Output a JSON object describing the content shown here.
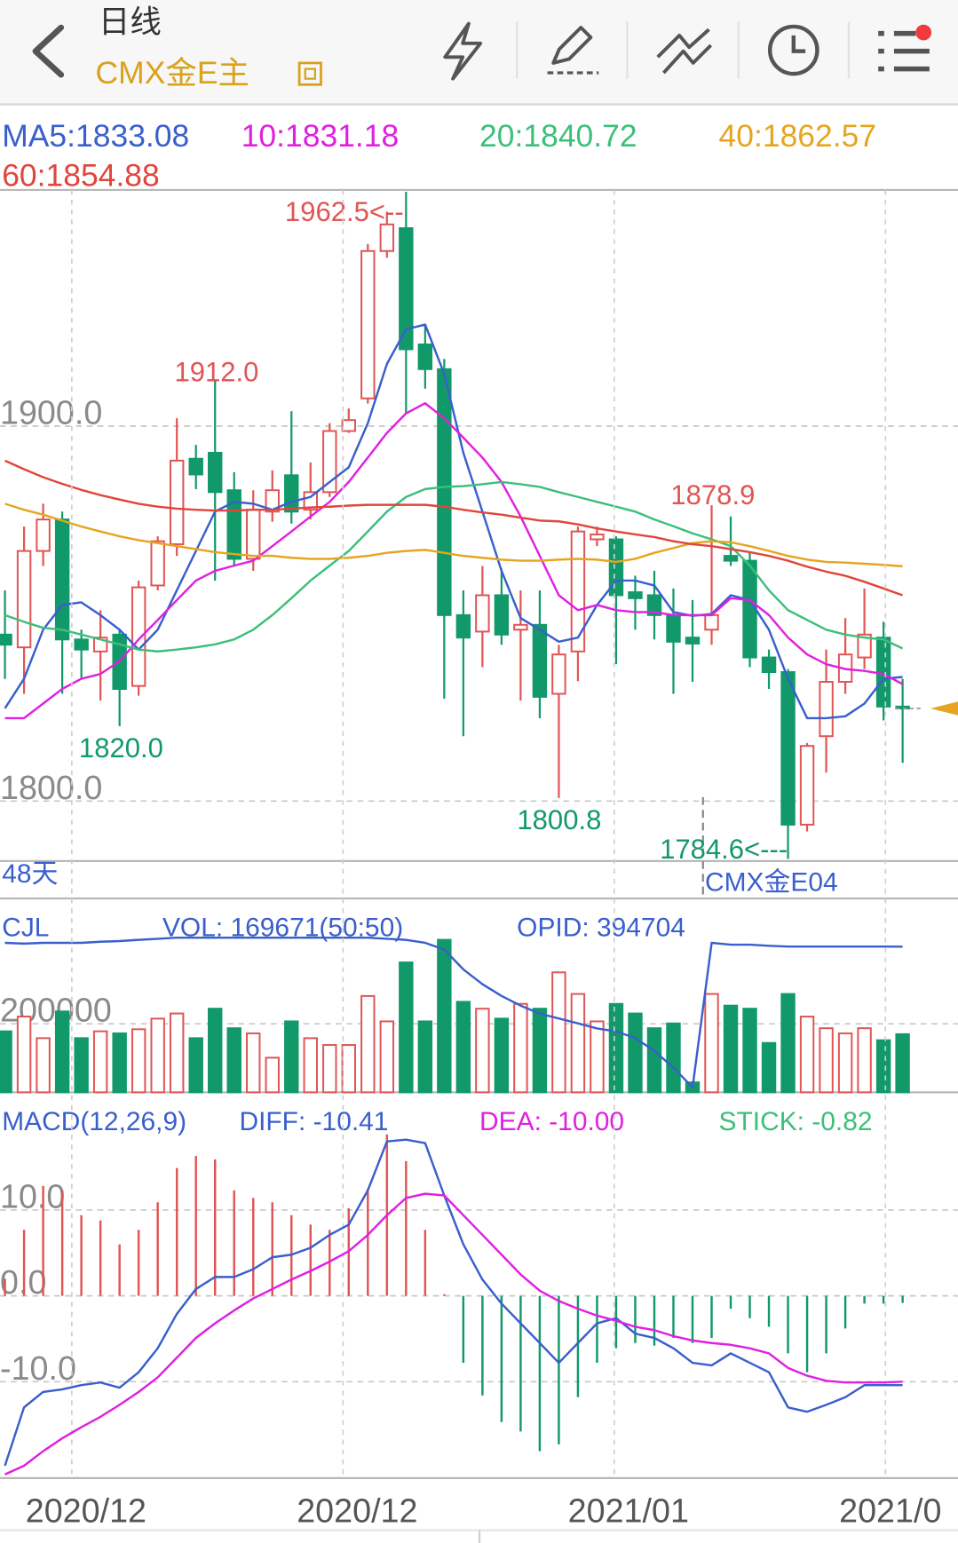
{
  "header": {
    "period": "日线",
    "symbol": "CMX金E主"
  },
  "chart_data": [
    {
      "type": "candlestick",
      "xlim": [
        -0.26,
        49.9
      ],
      "ylim": [
        1784,
        1963
      ],
      "yticks": [
        {
          "value": 1900,
          "label": "1900.0"
        },
        {
          "value": 1800,
          "label": "1800.0"
        }
      ],
      "grid": true,
      "up_color": "#e05555",
      "down_color": "#12996a",
      "open": [
        1844.4,
        1841.0,
        1866.7,
        1875.1,
        1843.1,
        1839.9,
        1844.4,
        1830.7,
        1857.5,
        1868.5,
        1891.3,
        1892.9,
        1882.9,
        1864.6,
        1877.2,
        1886.9,
        1877.7,
        1882.4,
        1898.7,
        1907.4,
        1946.7,
        1952.8,
        1921.8,
        1915.2,
        1849.6,
        1845.2,
        1854.9,
        1845.7,
        1847.0,
        1828.6,
        1839.9,
        1869.8,
        1869.8,
        1855.7,
        1854.9,
        1849.6,
        1843.6,
        1845.7,
        1865.4,
        1864.1,
        1838.3,
        1834.4,
        1793.7,
        1817.3,
        1831.8,
        1838.3,
        1843.6,
        1825.2
      ],
      "close": [
        1841.7,
        1866.7,
        1875.1,
        1843.1,
        1840.4,
        1843.6,
        1829.9,
        1857.0,
        1869.3,
        1890.8,
        1887.1,
        1882.4,
        1864.6,
        1877.7,
        1882.9,
        1877.2,
        1882.4,
        1898.7,
        1901.6,
        1946.7,
        1953.8,
        1920.5,
        1915.2,
        1849.6,
        1843.6,
        1854.9,
        1844.4,
        1847.0,
        1827.8,
        1839.1,
        1871.9,
        1871.1,
        1854.9,
        1854.1,
        1849.6,
        1842.5,
        1842.0,
        1849.6,
        1864.1,
        1838.3,
        1834.4,
        1793.7,
        1814.7,
        1831.8,
        1839.1,
        1844.4,
        1825.2,
        1824.7
      ],
      "high": [
        1856.2,
        1873.2,
        1879.3,
        1877.2,
        1845.7,
        1850.9,
        1845.7,
        1858.8,
        1870.6,
        1902.1,
        1895.0,
        1912.0,
        1887.7,
        1882.9,
        1888.2,
        1904.0,
        1890.3,
        1900.8,
        1904.7,
        1948.6,
        1957.2,
        1962.5,
        1927.0,
        1917.9,
        1856.2,
        1862.7,
        1862.0,
        1856.2,
        1856.2,
        1841.7,
        1873.2,
        1873.2,
        1870.6,
        1860.1,
        1861.4,
        1856.7,
        1853.6,
        1878.9,
        1875.9,
        1866.2,
        1840.4,
        1835.2,
        1815.5,
        1840.4,
        1848.8,
        1856.7,
        1847.8,
        1832.6
      ],
      "low": [
        1832.6,
        1828.6,
        1862.7,
        1828.6,
        1832.6,
        1826.8,
        1820.0,
        1828.1,
        1856.2,
        1865.4,
        1883.2,
        1858.8,
        1862.7,
        1861.4,
        1874.5,
        1874.0,
        1875.1,
        1881.1,
        1898.2,
        1906.0,
        1944.9,
        1903.4,
        1910.0,
        1827.3,
        1817.3,
        1835.7,
        1841.7,
        1826.8,
        1822.1,
        1800.8,
        1832.0,
        1868.0,
        1836.5,
        1845.7,
        1843.1,
        1828.6,
        1831.8,
        1841.7,
        1862.7,
        1835.7,
        1829.9,
        1784.6,
        1791.9,
        1807.6,
        1828.6,
        1835.2,
        1821.5,
        1810.2
      ],
      "series": [
        {
          "name": "MA5:1833.08",
          "color": "#3a5fcd",
          "values": [
            1824.7,
            1832.6,
            1845.7,
            1852.3,
            1853.0,
            1849.6,
            1845.7,
            1840.4,
            1845.7,
            1856.2,
            1866.7,
            1877.2,
            1879.8,
            1879.3,
            1877.7,
            1879.8,
            1881.1,
            1885.1,
            1889.0,
            1900.8,
            1916.6,
            1925.8,
            1927.1,
            1913.9,
            1892.9,
            1877.2,
            1861.4,
            1848.8,
            1845.7,
            1842.5,
            1843.6,
            1852.3,
            1858.8,
            1858.8,
            1857.5,
            1850.4,
            1849.4,
            1849.9,
            1854.9,
            1853.6,
            1845.7,
            1832.6,
            1822.1,
            1822.1,
            1822.6,
            1826.0,
            1832.6,
            1833.1
          ]
        },
        {
          "name": "10:1831.18",
          "color": "#e020e0",
          "values": [
            1822.1,
            1822.1,
            1826.0,
            1829.9,
            1832.6,
            1833.9,
            1837.3,
            1843.1,
            1848.3,
            1853.6,
            1858.8,
            1861.4,
            1862.8,
            1864.1,
            1868.0,
            1871.9,
            1875.9,
            1879.8,
            1885.1,
            1891.6,
            1898.2,
            1903.4,
            1906.1,
            1902.1,
            1896.9,
            1891.6,
            1885.1,
            1875.9,
            1865.4,
            1854.9,
            1850.9,
            1852.3,
            1850.9,
            1850.4,
            1850.4,
            1849.6,
            1849.6,
            1849.6,
            1854.1,
            1853.6,
            1849.6,
            1843.6,
            1839.1,
            1836.5,
            1835.2,
            1834.7,
            1833.9,
            1831.2
          ]
        },
        {
          "name": "20:1840.72",
          "color": "#3cbf7a",
          "values": [
            1849.6,
            1847.8,
            1846.2,
            1845.7,
            1844.4,
            1843.1,
            1841.8,
            1840.4,
            1839.9,
            1840.4,
            1841.0,
            1841.8,
            1843.1,
            1845.7,
            1849.6,
            1854.1,
            1858.8,
            1862.8,
            1866.7,
            1871.9,
            1877.2,
            1881.1,
            1883.2,
            1883.8,
            1884.0,
            1884.5,
            1885.1,
            1884.5,
            1883.8,
            1882.4,
            1881.1,
            1879.8,
            1878.5,
            1877.2,
            1875.1,
            1873.3,
            1871.4,
            1869.8,
            1868.0,
            1862.8,
            1856.2,
            1850.9,
            1848.3,
            1845.7,
            1844.4,
            1843.6,
            1843.1,
            1840.7
          ]
        },
        {
          "name": "40:1862.57",
          "color": "#e6a520",
          "values": [
            1879.3,
            1877.7,
            1876.4,
            1874.8,
            1873.2,
            1871.9,
            1870.6,
            1869.6,
            1868.8,
            1868.0,
            1867.2,
            1866.4,
            1865.9,
            1865.4,
            1865.4,
            1864.9,
            1864.6,
            1864.6,
            1864.9,
            1865.4,
            1866.2,
            1866.7,
            1867.0,
            1866.2,
            1865.4,
            1864.9,
            1864.4,
            1864.1,
            1864.1,
            1864.4,
            1864.6,
            1864.4,
            1863.8,
            1864.6,
            1866.2,
            1867.5,
            1868.8,
            1869.3,
            1869.0,
            1868.0,
            1866.7,
            1865.4,
            1864.4,
            1863.8,
            1863.6,
            1863.3,
            1863.0,
            1862.6
          ]
        },
        {
          "name": "60:1854.88",
          "color": "#e0463c",
          "values": [
            1890.8,
            1888.5,
            1886.4,
            1884.6,
            1883.0,
            1881.6,
            1880.4,
            1879.3,
            1878.5,
            1878.0,
            1877.7,
            1877.5,
            1877.5,
            1877.7,
            1877.7,
            1878.0,
            1878.3,
            1878.5,
            1878.8,
            1879.0,
            1879.0,
            1879.0,
            1879.0,
            1878.5,
            1877.7,
            1877.0,
            1876.4,
            1875.6,
            1874.8,
            1874.6,
            1873.8,
            1872.7,
            1871.9,
            1871.1,
            1870.4,
            1869.3,
            1868.5,
            1868.0,
            1867.2,
            1866.4,
            1865.4,
            1864.1,
            1862.5,
            1861.2,
            1860.1,
            1858.5,
            1856.7,
            1854.9
          ]
        }
      ],
      "annotations": [
        "1962.5<--",
        "1912.0",
        "1878.9",
        "1820.0",
        "1800.8",
        "1784.6<---"
      ],
      "period_label": "48天",
      "contract_label": "CMX金E04"
    },
    {
      "type": "volume",
      "title": "CJL",
      "xlim": [
        -0.26,
        49.9
      ],
      "ylim": [
        0,
        560000
      ],
      "yticks": [
        200000
      ],
      "y2lim": [
        0,
        520000
      ],
      "series": [
        {
          "name": "VOL: 169671(50:50)",
          "color": "#3a5fcd",
          "values": [
            178000,
            221000,
            158000,
            236000,
            158000,
            178000,
            172000,
            184000,
            215000,
            230000,
            158000,
            244000,
            187000,
            172000,
            101000,
            207000,
            158000,
            138000,
            138000,
            281000,
            207000,
            379000,
            207000,
            445000,
            264000,
            244000,
            215000,
            258000,
            244000,
            350000,
            287000,
            207000,
            258000,
            230000,
            187000,
            201000,
            29000,
            287000,
            253000,
            244000,
            144000,
            287000,
            221000,
            187000,
            172000,
            187000,
            152000,
            169671
          ]
        },
        {
          "name": "OPID: 394704",
          "color": "#3a5fcd",
          "axis": "y2",
          "values": [
            405000,
            403000,
            405000,
            405000,
            405000,
            408000,
            410000,
            413000,
            416000,
            419000,
            419000,
            419000,
            419000,
            419000,
            419000,
            419000,
            419000,
            419000,
            419000,
            419000,
            416000,
            413000,
            405000,
            387000,
            333000,
            293000,
            261000,
            235000,
            213000,
            200000,
            187000,
            173000,
            165000,
            147000,
            112000,
            67000,
            13000,
            405000,
            400000,
            400000,
            397000,
            395000,
            395000,
            395000,
            395000,
            395000,
            395000,
            394704
          ]
        }
      ]
    },
    {
      "type": "macd",
      "title": "MACD(12,26,9)",
      "xlim": [
        -0.26,
        49.9
      ],
      "ylim": [
        -21,
        22
      ],
      "yticks": [
        {
          "value": 10,
          "label": "10.0"
        },
        {
          "value": 0,
          "label": "0.0"
        },
        {
          "value": -10,
          "label": "-10.0"
        }
      ],
      "xticks": [
        {
          "value": 3.5,
          "label": "2020/12"
        },
        {
          "value": 17.7,
          "label": "2020/12"
        },
        {
          "value": 31.9,
          "label": "2021/01"
        },
        {
          "value": 46.1,
          "label": "2021/0"
        }
      ],
      "up_color": "#e05555",
      "down_color": "#12996a",
      "series": [
        {
          "name": "DIFF: -10.41",
          "color": "#3a5fcd",
          "values": [
            -19.8,
            -13.0,
            -11.2,
            -10.9,
            -10.4,
            -10.1,
            -10.7,
            -8.9,
            -6.1,
            -2.1,
            0.8,
            2.2,
            2.2,
            3.1,
            4.5,
            4.8,
            5.6,
            7.1,
            8.3,
            12.3,
            18.0,
            18.2,
            17.8,
            11.7,
            6.0,
            1.9,
            -0.9,
            -3.2,
            -5.5,
            -7.8,
            -5.5,
            -3.2,
            -2.6,
            -4.4,
            -4.9,
            -6.1,
            -7.8,
            -8.1,
            -6.7,
            -7.8,
            -8.9,
            -13.0,
            -13.5,
            -12.7,
            -11.8,
            -10.4,
            -10.4,
            -10.41
          ]
        },
        {
          "name": "DEA: -10.00",
          "color": "#e020e0",
          "values": [
            -20.8,
            -19.8,
            -18.1,
            -16.6,
            -15.3,
            -14.1,
            -12.7,
            -11.2,
            -9.5,
            -7.2,
            -4.9,
            -3.2,
            -1.7,
            -0.3,
            0.8,
            1.9,
            2.9,
            4.0,
            5.2,
            7.1,
            9.4,
            11.4,
            11.9,
            11.7,
            9.4,
            7.1,
            4.8,
            2.5,
            0.6,
            -0.6,
            -1.5,
            -2.3,
            -2.9,
            -3.6,
            -4.0,
            -4.7,
            -5.2,
            -5.5,
            -5.7,
            -6.1,
            -6.7,
            -8.4,
            -9.3,
            -9.9,
            -10.1,
            -10.1,
            -10.1,
            -10.0
          ]
        },
        {
          "name": "STICK: -0.82",
          "color": "#3cbf7a",
          "values": [
            2.0,
            7.7,
            12.8,
            12.3,
            9.4,
            8.8,
            6.0,
            7.7,
            10.9,
            14.9,
            16.3,
            15.9,
            12.3,
            11.4,
            10.9,
            9.4,
            8.3,
            7.7,
            10.2,
            12.5,
            18.8,
            15.7,
            7.7,
            0.2,
            -7.8,
            -11.6,
            -14.7,
            -15.8,
            -18.1,
            -17.3,
            -11.8,
            -7.8,
            -6.1,
            -5.5,
            -5.8,
            -4.9,
            -5.5,
            -4.9,
            -1.5,
            -2.6,
            -3.6,
            -6.7,
            -8.9,
            -6.7,
            -3.8,
            -0.9,
            -0.9,
            -0.82
          ]
        }
      ]
    }
  ]
}
